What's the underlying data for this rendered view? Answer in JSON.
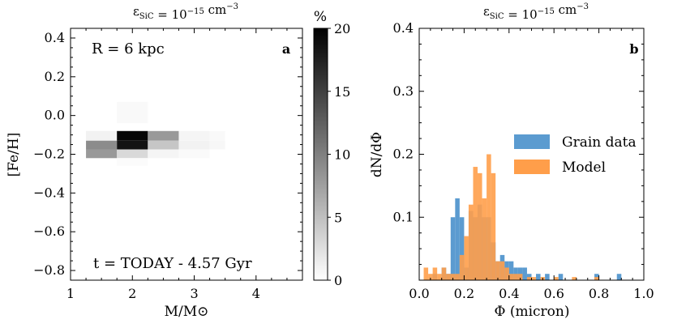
{
  "chart_data": [
    {
      "type": "heatmap",
      "panel_label": "a",
      "title": "ε_SiC = 10^-15 cm^-3",
      "title_parts": {
        "base": "ε",
        "sub": "SiC",
        "mid": " = 10",
        "sup": "−15",
        "unit": " cm",
        "unit_sup": "−3"
      },
      "xlabel": "M/M⊙",
      "ylabel": "[Fe/H]",
      "xlim": [
        1.0,
        4.75
      ],
      "ylim": [
        -0.85,
        0.45
      ],
      "xticks": [
        1,
        2,
        3,
        4
      ],
      "xtick_labels": [
        "1",
        "2",
        "3",
        "4"
      ],
      "yticks": [
        0.4,
        0.2,
        0.0,
        -0.2,
        -0.4,
        -0.6,
        -0.8
      ],
      "ytick_labels": [
        "0.4",
        "0.2",
        "0.0",
        "−0.2",
        "−0.4",
        "−0.6",
        "−0.8"
      ],
      "annotations": [
        "R = 6 kpc",
        "t = TODAY - 4.57 Gyr"
      ],
      "colorbar": {
        "label": "%",
        "min": 0,
        "max": 20,
        "ticks": [
          0,
          5,
          10,
          15,
          20
        ],
        "tick_labels": [
          "0",
          "5",
          "10",
          "15",
          "20"
        ]
      },
      "x_edges": [
        1.25,
        1.75,
        2.25,
        2.75,
        3.25,
        3.5
      ],
      "y_edges": [
        0.07,
        -0.04,
        -0.08,
        -0.13,
        -0.175,
        -0.22,
        -0.26
      ],
      "cells": [
        {
          "x": [
            1.75,
            2.25
          ],
          "y": [
            -0.04,
            0.07
          ],
          "value": 0.5
        },
        {
          "x": [
            1.25,
            1.75
          ],
          "y": [
            -0.13,
            -0.08
          ],
          "value": 1.0
        },
        {
          "x": [
            1.75,
            2.25
          ],
          "y": [
            -0.13,
            -0.08
          ],
          "value": 19.5
        },
        {
          "x": [
            2.25,
            2.75
          ],
          "y": [
            -0.13,
            -0.08
          ],
          "value": 8.0
        },
        {
          "x": [
            2.75,
            3.25
          ],
          "y": [
            -0.13,
            -0.08
          ],
          "value": 0.8
        },
        {
          "x": [
            3.25,
            3.5
          ],
          "y": [
            -0.13,
            -0.08
          ],
          "value": 0.5
        },
        {
          "x": [
            1.25,
            1.75
          ],
          "y": [
            -0.175,
            -0.13
          ],
          "value": 9.0
        },
        {
          "x": [
            1.75,
            2.25
          ],
          "y": [
            -0.175,
            -0.13
          ],
          "value": 18.5
        },
        {
          "x": [
            2.25,
            2.75
          ],
          "y": [
            -0.175,
            -0.13
          ],
          "value": 4.5
        },
        {
          "x": [
            2.75,
            3.25
          ],
          "y": [
            -0.175,
            -0.13
          ],
          "value": 1.0
        },
        {
          "x": [
            3.25,
            3.5
          ],
          "y": [
            -0.175,
            -0.13
          ],
          "value": 0.6
        },
        {
          "x": [
            1.25,
            1.75
          ],
          "y": [
            -0.22,
            -0.175
          ],
          "value": 8.0
        },
        {
          "x": [
            1.75,
            2.25
          ],
          "y": [
            -0.22,
            -0.175
          ],
          "value": 3.0
        },
        {
          "x": [
            2.25,
            2.75
          ],
          "y": [
            -0.22,
            -0.175
          ],
          "value": 0.8
        },
        {
          "x": [
            2.75,
            3.25
          ],
          "y": [
            -0.22,
            -0.175
          ],
          "value": 0.4
        },
        {
          "x": [
            1.75,
            2.25
          ],
          "y": [
            -0.26,
            -0.22
          ],
          "value": 0.3
        }
      ]
    },
    {
      "type": "bar",
      "subtype": "histogram",
      "panel_label": "b",
      "title": "ε_SiC = 10^-15 cm^-3",
      "title_parts": {
        "base": "ε",
        "sub": "SiC",
        "mid": " = 10",
        "sup": "−15",
        "unit": " cm",
        "unit_sup": "−3"
      },
      "xlabel": "Φ (micron)",
      "ylabel": "dN/dΦ",
      "xlim": [
        0.0,
        1.0
      ],
      "ylim": [
        0.0,
        0.4
      ],
      "xticks": [
        0.0,
        0.2,
        0.4,
        0.6,
        0.8,
        1.0
      ],
      "xtick_labels": [
        "0.0",
        "0.2",
        "0.4",
        "0.6",
        "0.8",
        "1.0"
      ],
      "yticks": [
        0.1,
        0.2,
        0.3,
        0.4
      ],
      "ytick_labels": [
        "0.1",
        "0.2",
        "0.3",
        "0.4"
      ],
      "legend_position": "center-right",
      "bin_width": 0.02,
      "series": [
        {
          "name": "Grain data",
          "color": "#5b9bd0",
          "bin_starts": [
            0.06,
            0.1,
            0.12,
            0.14,
            0.16,
            0.18,
            0.2,
            0.22,
            0.24,
            0.26,
            0.28,
            0.3,
            0.32,
            0.34,
            0.36,
            0.38,
            0.4,
            0.42,
            0.44,
            0.46,
            0.48,
            0.52,
            0.56,
            0.62,
            0.78,
            0.88
          ],
          "values": [
            0.01,
            0.02,
            0.01,
            0.1,
            0.13,
            0.1,
            0.02,
            0.11,
            0.1,
            0.12,
            0.1,
            0.1,
            0.06,
            0.03,
            0.04,
            0.03,
            0.03,
            0.02,
            0.02,
            0.02,
            0.01,
            0.01,
            0.01,
            0.01,
            0.01,
            0.01
          ]
        },
        {
          "name": "Model",
          "color": "#ff9e4a",
          "bin_starts": [
            0.02,
            0.04,
            0.06,
            0.08,
            0.1,
            0.12,
            0.14,
            0.16,
            0.18,
            0.2,
            0.22,
            0.24,
            0.26,
            0.28,
            0.3,
            0.32,
            0.34,
            0.36,
            0.38,
            0.4,
            0.42,
            0.44,
            0.48,
            0.5,
            0.54,
            0.6,
            0.68,
            0.78
          ],
          "values": [
            0.02,
            0.01,
            0.02,
            0.01,
            0.02,
            0.01,
            0.01,
            0.01,
            0.04,
            0.07,
            0.12,
            0.18,
            0.17,
            0.13,
            0.2,
            0.17,
            0.03,
            0.03,
            0.02,
            0.01,
            0.01,
            0.01,
            0.005,
            0.005,
            0.005,
            0.005,
            0.005,
            0.005
          ]
        }
      ]
    }
  ]
}
